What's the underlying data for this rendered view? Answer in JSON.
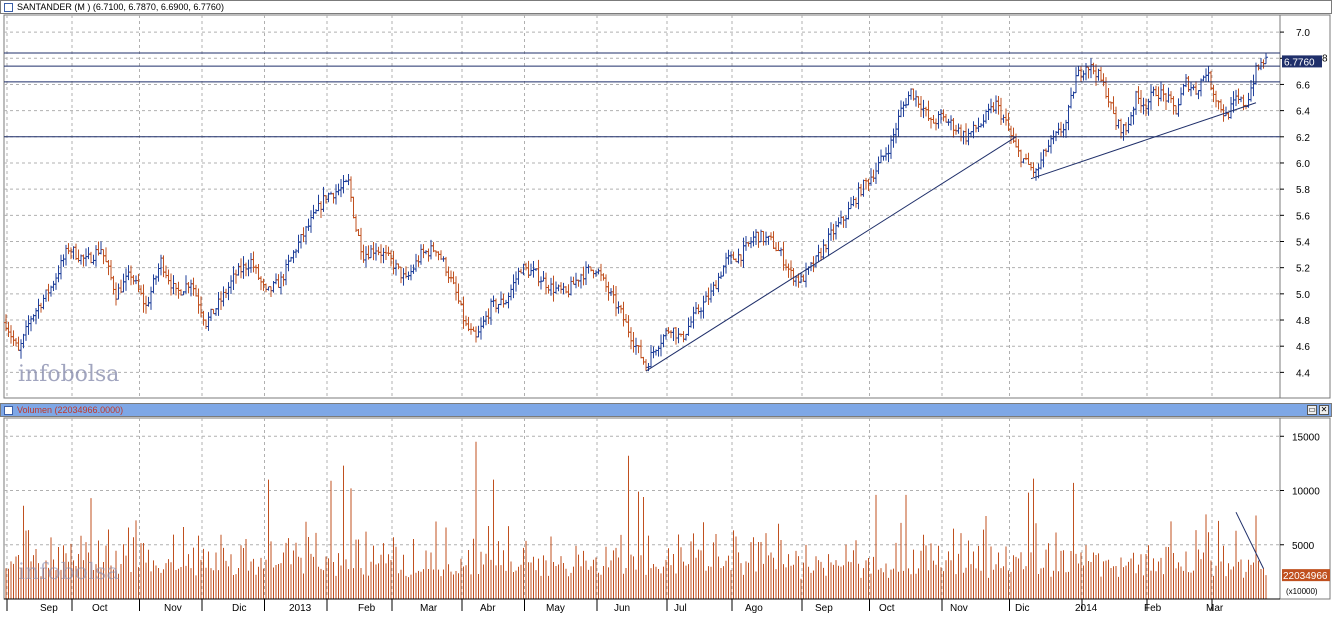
{
  "price_pane": {
    "title": "SANTANDER (M ) (6.7100, 6.7870, 6.6900, 6.7760)",
    "last_value": "6.7760",
    "last_value_partial": "8"
  },
  "volume_pane": {
    "title": "Volumen (22034966.0000)",
    "last_value": "22034966",
    "scale_note": "(x10000)"
  },
  "watermark": "infobolsa",
  "window_buttons": {
    "restore": "▭",
    "close": "✕"
  },
  "colors": {
    "up": "#1f3f9a",
    "down": "#c0501f",
    "volume": "#c0501f",
    "grid": "#b0b0b0",
    "line": "#1f2f6a",
    "header_volume": "#7ea7e6"
  },
  "chart_data": [
    {
      "type": "ohlc",
      "ylim": [
        4.25,
        7.1
      ],
      "yticks": [
        4.4,
        4.6,
        4.8,
        5.0,
        5.2,
        5.4,
        5.6,
        5.8,
        6.0,
        6.2,
        6.4,
        6.6,
        6.8,
        7.0
      ],
      "months": [
        "Sep",
        "Oct",
        "Nov",
        "Dic",
        "2013",
        "Feb",
        "Mar",
        "Abr",
        "May",
        "Jun",
        "Jul",
        "Ago",
        "Sep",
        "Oct",
        "Nov",
        "Dic",
        "2014",
        "Feb",
        "Mar"
      ],
      "anchors": [
        [
          0,
          4.78
        ],
        [
          5,
          4.55
        ],
        [
          10,
          4.82
        ],
        [
          18,
          5.05
        ],
        [
          25,
          5.35
        ],
        [
          32,
          5.25
        ],
        [
          38,
          5.35
        ],
        [
          44,
          5.0
        ],
        [
          50,
          5.15
        ],
        [
          56,
          4.9
        ],
        [
          62,
          5.25
        ],
        [
          68,
          5.0
        ],
        [
          74,
          5.1
        ],
        [
          80,
          4.78
        ],
        [
          86,
          4.95
        ],
        [
          92,
          5.15
        ],
        [
          98,
          5.25
        ],
        [
          104,
          5.0
        ],
        [
          110,
          5.1
        ],
        [
          116,
          5.35
        ],
        [
          122,
          5.55
        ],
        [
          128,
          5.75
        ],
        [
          134,
          5.8
        ],
        [
          137,
          5.85
        ],
        [
          140,
          5.5
        ],
        [
          143,
          5.3
        ],
        [
          148,
          5.35
        ],
        [
          154,
          5.25
        ],
        [
          160,
          5.1
        ],
        [
          166,
          5.3
        ],
        [
          172,
          5.35
        ],
        [
          176,
          5.2
        ],
        [
          180,
          5.0
        ],
        [
          184,
          4.75
        ],
        [
          188,
          4.65
        ],
        [
          194,
          4.9
        ],
        [
          200,
          4.95
        ],
        [
          206,
          5.2
        ],
        [
          212,
          5.15
        ],
        [
          218,
          5.05
        ],
        [
          224,
          5.0
        ],
        [
          230,
          5.15
        ],
        [
          236,
          5.2
        ],
        [
          240,
          5.05
        ],
        [
          246,
          4.85
        ],
        [
          252,
          4.6
        ],
        [
          256,
          4.45
        ],
        [
          260,
          4.6
        ],
        [
          266,
          4.75
        ],
        [
          270,
          4.65
        ],
        [
          276,
          4.85
        ],
        [
          282,
          5.0
        ],
        [
          288,
          5.25
        ],
        [
          294,
          5.3
        ],
        [
          300,
          5.45
        ],
        [
          306,
          5.4
        ],
        [
          310,
          5.3
        ],
        [
          314,
          5.15
        ],
        [
          318,
          5.1
        ],
        [
          324,
          5.25
        ],
        [
          330,
          5.45
        ],
        [
          336,
          5.6
        ],
        [
          342,
          5.8
        ],
        [
          348,
          5.95
        ],
        [
          354,
          6.15
        ],
        [
          358,
          6.4
        ],
        [
          362,
          6.55
        ],
        [
          366,
          6.45
        ],
        [
          370,
          6.3
        ],
        [
          374,
          6.35
        ],
        [
          378,
          6.3
        ],
        [
          384,
          6.2
        ],
        [
          390,
          6.3
        ],
        [
          396,
          6.45
        ],
        [
          400,
          6.3
        ],
        [
          404,
          6.1
        ],
        [
          408,
          6.0
        ],
        [
          412,
          5.92
        ],
        [
          416,
          6.1
        ],
        [
          420,
          6.2
        ],
        [
          424,
          6.3
        ],
        [
          428,
          6.65
        ],
        [
          432,
          6.75
        ],
        [
          436,
          6.7
        ],
        [
          440,
          6.55
        ],
        [
          444,
          6.3
        ],
        [
          448,
          6.25
        ],
        [
          452,
          6.5
        ],
        [
          456,
          6.45
        ],
        [
          460,
          6.55
        ],
        [
          464,
          6.5
        ],
        [
          468,
          6.4
        ],
        [
          472,
          6.62
        ],
        [
          476,
          6.55
        ],
        [
          480,
          6.7
        ],
        [
          484,
          6.5
        ],
        [
          488,
          6.35
        ],
        [
          492,
          6.48
        ],
        [
          496,
          6.45
        ],
        [
          500,
          6.7
        ],
        [
          503,
          6.78
        ]
      ],
      "horizontal_levels": [
        6.84,
        6.74,
        6.62,
        6.2
      ],
      "trendlines": [
        {
          "from": [
            "Jun",
            4.41
          ],
          "to": [
            "Dic",
            6.2
          ]
        },
        {
          "from": [
            "Dic",
            5.88
          ],
          "to": [
            "Mar",
            6.46
          ]
        }
      ]
    },
    {
      "type": "bar",
      "ylim": [
        0,
        16500
      ],
      "yticks": [
        5000,
        10000,
        15000
      ],
      "last_value": 22034966,
      "peaks": [
        [
          7,
          8600
        ],
        [
          34,
          9300
        ],
        [
          105,
          11000
        ],
        [
          130,
          10900
        ],
        [
          135,
          12300
        ],
        [
          138,
          10200
        ],
        [
          188,
          14500
        ],
        [
          195,
          11000
        ],
        [
          249,
          13200
        ],
        [
          253,
          9900
        ],
        [
          255,
          9400
        ],
        [
          348,
          9600
        ],
        [
          360,
          9600
        ],
        [
          409,
          9800
        ],
        [
          411,
          11100
        ],
        [
          427,
          10700
        ],
        [
          480,
          7800
        ],
        [
          485,
          7200
        ],
        [
          500,
          7700
        ]
      ],
      "trendline": {
        "from": 8000,
        "to": 2800
      }
    }
  ]
}
